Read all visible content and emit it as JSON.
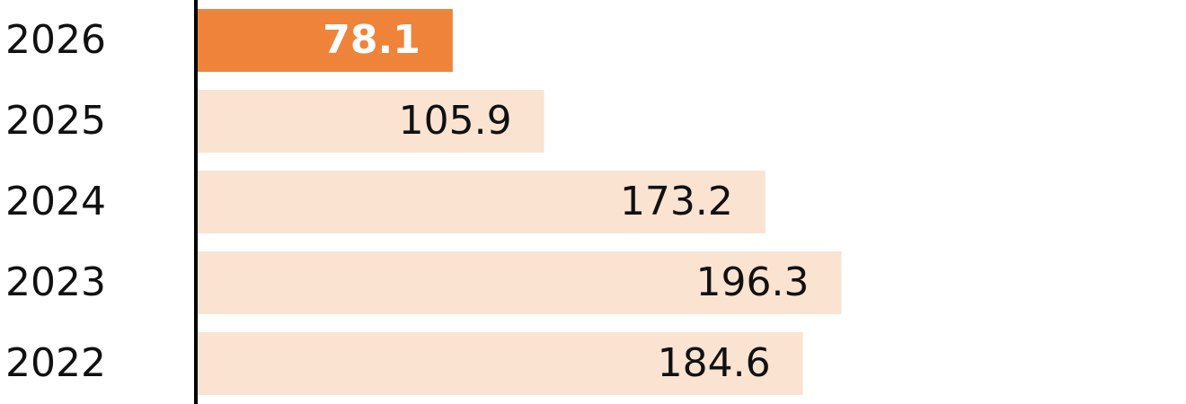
{
  "chart_data": {
    "type": "hbar",
    "categories": [
      "2026",
      "2025",
      "2024",
      "2023",
      "2022"
    ],
    "values": [
      78.1,
      105.9,
      173.2,
      196.3,
      184.6
    ],
    "colors": [
      "#f0833a",
      "#fbe3d2",
      "#fbe3d2",
      "#fbe3d2",
      "#fbe3d2"
    ],
    "label_colors": [
      "#ffffff",
      "#111111",
      "#111111",
      "#111111",
      "#111111"
    ],
    "xlim": [
      0,
      300
    ]
  }
}
